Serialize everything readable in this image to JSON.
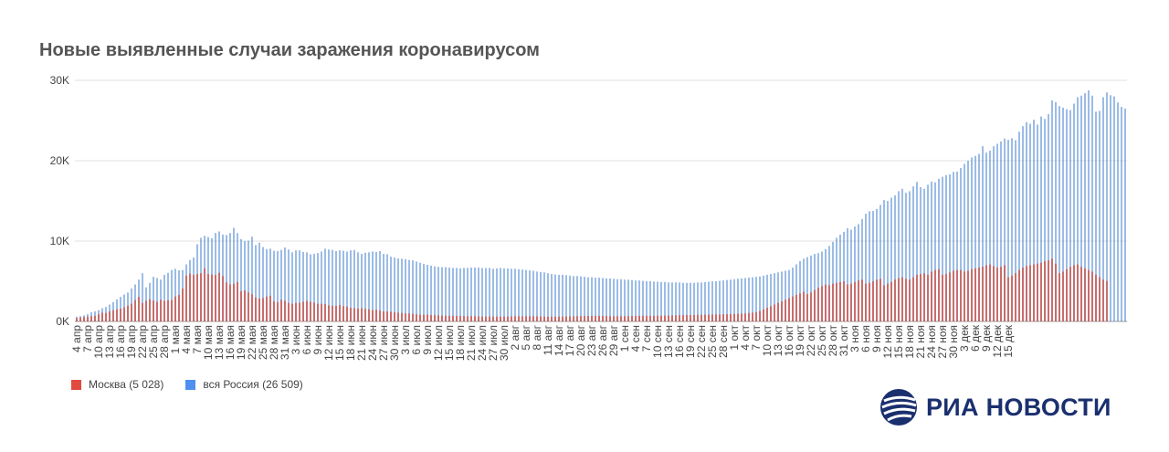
{
  "title": "Новые выявленные случаи заражения коронавирусом",
  "legend": {
    "moscow": "Москва (5 028)",
    "russia": "вся Россия (26 509)"
  },
  "colors": {
    "moscow": "#c0504d",
    "russia": "#5b8fd6",
    "grid": "#e0e0e0",
    "axis_text": "#444444",
    "legend_moscow": "#e04a3f",
    "legend_russia": "#4e8ff0",
    "logo": "#1a2f6e"
  },
  "logo_text": "РИА НОВОСТИ",
  "chart_data": {
    "type": "bar",
    "title": "Новые выявленные случаи заражения коронавирусом",
    "ylim": [
      0,
      30000
    ],
    "yticks": [
      0,
      10000,
      20000,
      30000
    ],
    "ytick_labels": [
      "0K",
      "10K",
      "20K",
      "30K"
    ],
    "grid": true,
    "legend_position": "bottom-left",
    "start_date": "2020-04-04",
    "tick_labels": [
      "4 апр",
      "7 апр",
      "10 апр",
      "13 апр",
      "16 апр",
      "19 апр",
      "22 апр",
      "25 апр",
      "28 апр",
      "1 мая",
      "4 мая",
      "7 мая",
      "10 мая",
      "13 мая",
      "16 мая",
      "19 мая",
      "22 мая",
      "25 мая",
      "28 мая",
      "31 мая",
      "3 июн",
      "6 июн",
      "9 июн",
      "12 июн",
      "15 июн",
      "18 июн",
      "21 июн",
      "24 июн",
      "27 июн",
      "30 июн",
      "3 июл",
      "6 июл",
      "9 июл",
      "12 июл",
      "15 июл",
      "18 июл",
      "21 июл",
      "24 июл",
      "27 июл",
      "30 июл",
      "2 авг",
      "5 авг",
      "8 авг",
      "11 авг",
      "14 авг",
      "17 авг",
      "20 авг",
      "23 авг",
      "26 авг",
      "29 авг",
      "1 сен",
      "4 сен",
      "7 сен",
      "10 сен",
      "13 сен",
      "16 сен",
      "19 сен",
      "22 сен",
      "25 сен",
      "28 сен",
      "1 окт",
      "4 окт",
      "7 окт",
      "10 окт",
      "13 окт",
      "16 окт",
      "19 окт",
      "22 окт",
      "25 окт",
      "28 окт",
      "31 окт",
      "3 ноя",
      "6 ноя",
      "9 ноя",
      "12 ноя",
      "15 ноя",
      "18 ноя",
      "21 ноя",
      "24 ноя",
      "27 ноя",
      "30 ноя",
      "3 дек",
      "6 дек",
      "9 дек",
      "12 дек",
      "15 дек"
    ],
    "series": [
      {
        "name": "Москва (5 028)",
        "values": [
          434,
          500,
          550,
          600,
          660,
          700,
          900,
          1100,
          1050,
          1250,
          1400,
          1500,
          1600,
          1750,
          1950,
          2200,
          2650,
          3050,
          2300,
          2550,
          2750,
          2600,
          2450,
          2700,
          2550,
          2650,
          2650,
          3100,
          3300,
          4100,
          5700,
          5950,
          5800,
          5900,
          6000,
          6600,
          5900,
          5850,
          5800,
          6050,
          5650,
          4850,
          4600,
          4700,
          4900,
          3750,
          3850,
          3600,
          3400,
          3000,
          2850,
          2900,
          3100,
          3200,
          2500,
          2400,
          2700,
          2550,
          2300,
          2200,
          2300,
          2300,
          2450,
          2550,
          2450,
          2350,
          2200,
          2200,
          2150,
          2000,
          1950,
          1950,
          2050,
          1900,
          1850,
          1700,
          1650,
          1600,
          1650,
          1550,
          1500,
          1400,
          1450,
          1350,
          1250,
          1250,
          1200,
          1150,
          1100,
          1050,
          1000,
          1000,
          950,
          900,
          850,
          850,
          850,
          800,
          780,
          760,
          740,
          720,
          700,
          690,
          680,
          670,
          660,
          650,
          650,
          640,
          630,
          620,
          610,
          600,
          600,
          600,
          600,
          610,
          620,
          630,
          640,
          650,
          650,
          650,
          650,
          640,
          630,
          620,
          610,
          600,
          600,
          600,
          600,
          610,
          620,
          630,
          640,
          650,
          660,
          670,
          680,
          690,
          690,
          690,
          680,
          670,
          660,
          650,
          650,
          650,
          650,
          660,
          670,
          680,
          690,
          700,
          700,
          700,
          700,
          710,
          720,
          730,
          740,
          750,
          760,
          770,
          780,
          790,
          800,
          810,
          820,
          830,
          840,
          850,
          860,
          870,
          880,
          890,
          900,
          920,
          940,
          960,
          980,
          1000,
          1050,
          1100,
          1150,
          1300,
          1500,
          1700,
          1900,
          2100,
          2300,
          2500,
          2700,
          2900,
          3100,
          3300,
          3500,
          3700,
          3400,
          3600,
          3900,
          4200,
          4400,
          4600,
          4500,
          4700,
          4800,
          4900,
          5000,
          4600,
          4700,
          4900,
          5100,
          5200,
          4700,
          4800,
          5000,
          5200,
          5300,
          4500,
          4700,
          4900,
          5200,
          5400,
          5500,
          5300,
          5200,
          5500,
          5800,
          5900,
          6000,
          5800,
          6200,
          6400,
          6500,
          5800,
          5900,
          6100,
          6300,
          6400,
          6400,
          6200,
          6300,
          6500,
          6600,
          6700,
          6800,
          7000,
          7100,
          6900,
          6700,
          6800,
          7000,
          5500,
          5700,
          6000,
          6400,
          6700,
          6900,
          7000,
          7100,
          7200,
          7300,
          7500,
          7600,
          7800,
          7200,
          6000,
          6200,
          6500,
          6800,
          7000,
          7100,
          6800,
          6600,
          6400,
          6200,
          5800,
          5500,
          5200,
          5028
        ]
      },
      {
        "name": "вся Россия (26 509)",
        "values": [
          582,
          650,
          750,
          900,
          1150,
          1250,
          1400,
          1650,
          1800,
          2100,
          2400,
          2750,
          3050,
          3350,
          3600,
          4100,
          4600,
          5200,
          6000,
          4250,
          4800,
          5550,
          5400,
          5200,
          5800,
          6050,
          6400,
          6550,
          6350,
          6400,
          7100,
          7650,
          7950,
          9600,
          10400,
          10650,
          10500,
          10350,
          11000,
          11200,
          10800,
          10750,
          11000,
          11650,
          11000,
          10250,
          10000,
          10050,
          10550,
          9500,
          9800,
          9250,
          9000,
          9050,
          8800,
          8750,
          8900,
          9200,
          8950,
          8600,
          8850,
          8850,
          8650,
          8600,
          8350,
          8400,
          8500,
          8700,
          9050,
          8950,
          8900,
          8750,
          8850,
          8800,
          8700,
          8850,
          8900,
          8600,
          8400,
          8550,
          8600,
          8700,
          8650,
          8750,
          8400,
          8350,
          8050,
          7950,
          7850,
          7800,
          7750,
          7650,
          7600,
          7450,
          7300,
          7150,
          7050,
          6950,
          6850,
          6800,
          6750,
          6750,
          6700,
          6650,
          6650,
          6600,
          6650,
          6650,
          6700,
          6700,
          6700,
          6650,
          6650,
          6650,
          6550,
          6600,
          6650,
          6600,
          6600,
          6550,
          6550,
          6500,
          6450,
          6400,
          6350,
          6300,
          6200,
          6150,
          6100,
          6000,
          5900,
          5850,
          5800,
          5800,
          5750,
          5700,
          5650,
          5650,
          5600,
          5550,
          5500,
          5500,
          5450,
          5450,
          5400,
          5350,
          5350,
          5300,
          5250,
          5250,
          5200,
          5200,
          5150,
          5100,
          5100,
          5050,
          5000,
          5000,
          4950,
          4950,
          4900,
          4900,
          4850,
          4850,
          4850,
          4850,
          4800,
          4800,
          4800,
          4800,
          4850,
          4850,
          4900,
          4950,
          5000,
          5000,
          5050,
          5100,
          5150,
          5200,
          5250,
          5300,
          5350,
          5400,
          5450,
          5500,
          5550,
          5600,
          5700,
          5800,
          5900,
          6000,
          6100,
          6200,
          6300,
          6400,
          6700,
          7100,
          7500,
          7800,
          8000,
          8200,
          8400,
          8500,
          8700,
          9000,
          9400,
          9900,
          10400,
          10800,
          11150,
          11600,
          11400,
          11800,
          12100,
          12750,
          13400,
          13700,
          13750,
          14000,
          14500,
          15100,
          15000,
          15400,
          15700,
          16200,
          16500,
          16000,
          16200,
          16800,
          17350,
          16700,
          16500,
          17000,
          17400,
          17300,
          17750,
          18000,
          18200,
          18300,
          18600,
          18650,
          19100,
          19600,
          20000,
          20400,
          20600,
          20850,
          21800,
          21000,
          21250,
          21800,
          22100,
          22400,
          22750,
          22600,
          22800,
          22550,
          23600,
          24300,
          24800,
          24600,
          25100,
          24500,
          25500,
          25200,
          25800,
          27500,
          27300,
          26800,
          26600,
          26400,
          26300,
          27100,
          27900,
          28100,
          28400,
          28750,
          28100,
          26100,
          26200,
          27900,
          28500,
          28150,
          28000,
          27250,
          26700,
          26509
        ]
      }
    ]
  }
}
